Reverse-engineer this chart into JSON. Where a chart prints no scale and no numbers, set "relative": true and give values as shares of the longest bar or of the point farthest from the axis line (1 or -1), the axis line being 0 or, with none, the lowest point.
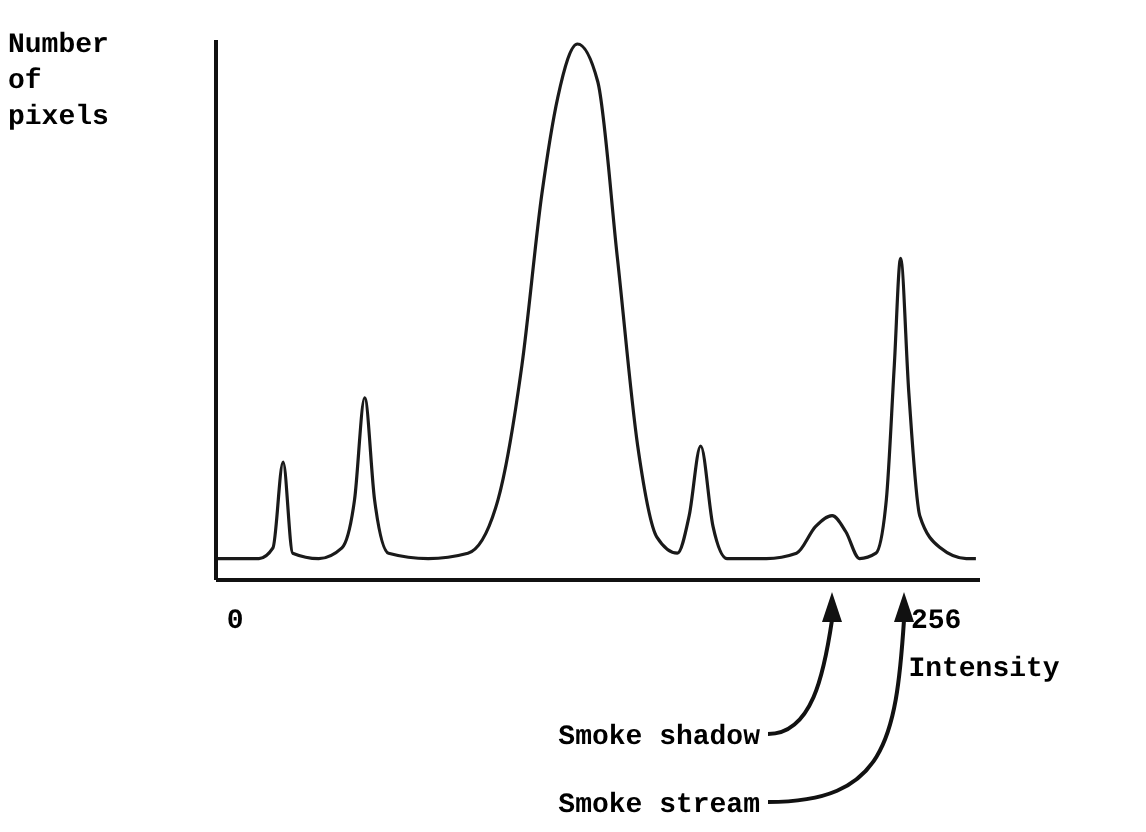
{
  "chart_data": {
    "type": "line",
    "relative": true,
    "xlabel": "Intensity",
    "ylabel": "Number of pixels",
    "xlim": [
      -7,
      272
    ],
    "xticks": [
      0,
      256
    ],
    "color": "#1a1a1a",
    "grid": false,
    "marker": "none",
    "x": [
      -7,
      8.7,
      13.8,
      17.5,
      21,
      30.5,
      39,
      43.6,
      47.3,
      50.9,
      56,
      70.5,
      85,
      96,
      104.7,
      112,
      117.8,
      125,
      132.4,
      139.6,
      147,
      154,
      161.5,
      165.8,
      170,
      174.5,
      179.6,
      194,
      205,
      212,
      218,
      223,
      228,
      234,
      237.8,
      240.7,
      243,
      246,
      250,
      257.5,
      267,
      270.5
    ],
    "values": [
      0.04,
      0.04,
      0.06,
      0.22,
      0.05,
      0.04,
      0.06,
      0.15,
      0.34,
      0.15,
      0.05,
      0.04,
      0.05,
      0.15,
      0.4,
      0.72,
      0.9,
      1.0,
      0.93,
      0.6,
      0.25,
      0.08,
      0.05,
      0.12,
      0.25,
      0.1,
      0.04,
      0.04,
      0.05,
      0.1,
      0.12,
      0.09,
      0.04,
      0.05,
      0.15,
      0.4,
      0.6,
      0.35,
      0.12,
      0.06,
      0.04,
      0.04
    ],
    "annotations": [
      "Smoke shadow",
      "Smoke stream"
    ]
  }
}
